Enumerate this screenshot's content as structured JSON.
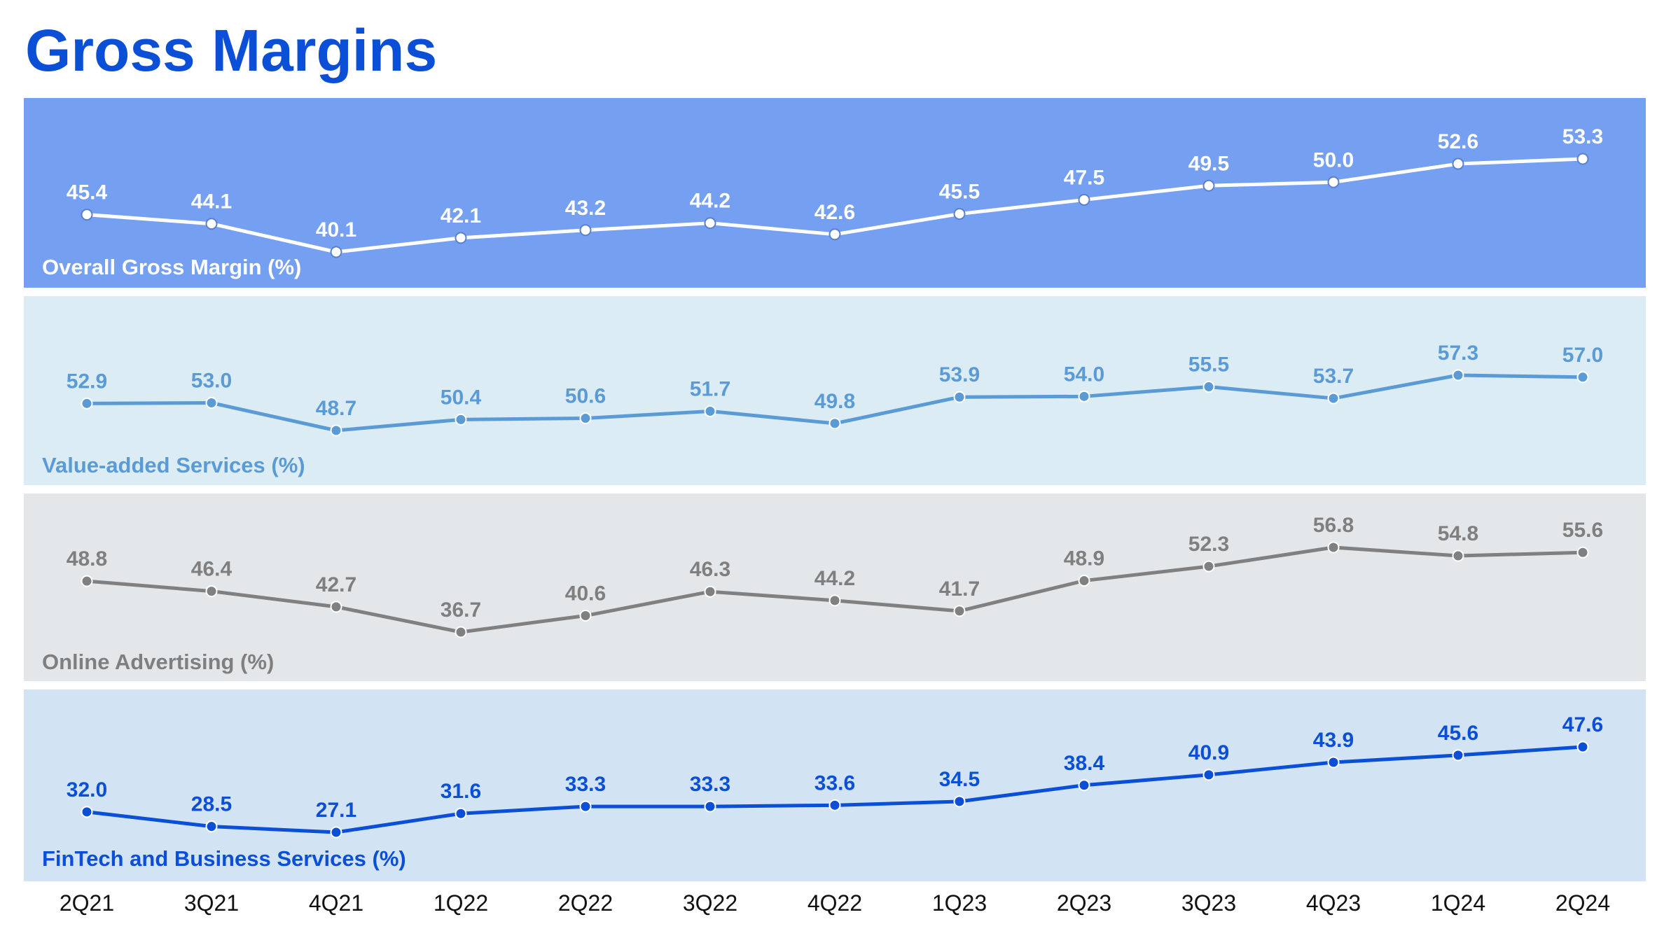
{
  "title": "Gross Margins",
  "colors": {
    "title": "#0a4fd6",
    "x_tick": "#111111"
  },
  "chart_data": {
    "type": "line",
    "title": "Gross Margins",
    "categories": [
      "2Q21",
      "3Q21",
      "4Q21",
      "1Q22",
      "2Q22",
      "3Q22",
      "4Q22",
      "1Q23",
      "2Q23",
      "3Q23",
      "4Q23",
      "1Q24",
      "2Q24"
    ],
    "grid": false,
    "panels": [
      {
        "label": "Overall Gross Margin (%)",
        "series": [
          {
            "name": "Overall Gross Margin (%)",
            "values": [
              45.4,
              44.1,
              40.1,
              42.1,
              43.2,
              44.2,
              42.6,
              45.5,
              47.5,
              49.5,
              50.0,
              52.6,
              53.3
            ]
          }
        ],
        "value_labels": [
          "45.4",
          "44.1",
          "40.1",
          "42.1",
          "43.2",
          "44.2",
          "42.6",
          "45.5",
          "47.5",
          "49.5",
          "50.0",
          "52.6",
          "53.3"
        ],
        "ylim": [
          40.1,
          53.3
        ],
        "background": "#759ff0",
        "line_color": "#ffffff",
        "marker_fill": "#ffffff",
        "marker_stroke": "#5b7fd1",
        "text_color": "#ffffff"
      },
      {
        "label": "Value-added Services (%)",
        "series": [
          {
            "name": "Value-added Services (%)",
            "values": [
              52.9,
              53.0,
              48.7,
              50.4,
              50.6,
              51.7,
              49.8,
              53.9,
              54.0,
              55.5,
              53.7,
              57.3,
              57.0
            ]
          }
        ],
        "value_labels": [
          "52.9",
          "53.0",
          "48.7",
          "50.4",
          "50.6",
          "51.7",
          "49.8",
          "53.9",
          "54.0",
          "55.5",
          "53.7",
          "57.3",
          "57.0"
        ],
        "ylim": [
          48.7,
          57.3
        ],
        "background": "#dcecf5",
        "line_color": "#5b9bd5",
        "marker_fill": "#5b9bd5",
        "marker_stroke": "#ffffff",
        "text_color": "#5b9bd5"
      },
      {
        "label": "Online Advertising (%)",
        "series": [
          {
            "name": "Online Advertising (%)",
            "values": [
              48.8,
              46.4,
              42.7,
              36.7,
              40.6,
              46.3,
              44.2,
              41.7,
              48.9,
              52.3,
              56.8,
              54.8,
              55.6
            ]
          }
        ],
        "value_labels": [
          "48.8",
          "46.4",
          "42.7",
          "36.7",
          "40.6",
          "46.3",
          "44.2",
          "41.7",
          "48.9",
          "52.3",
          "56.8",
          "54.8",
          "55.6"
        ],
        "ylim": [
          36.7,
          56.8
        ],
        "background": "#e3e7ea",
        "line_color": "#808080",
        "marker_fill": "#808080",
        "marker_stroke": "#ffffff",
        "text_color": "#7f7f7f"
      },
      {
        "label": "FinTech and Business Services (%)",
        "series": [
          {
            "name": "FinTech and Business Services (%)",
            "values": [
              32.0,
              28.5,
              27.1,
              31.6,
              33.3,
              33.3,
              33.6,
              34.5,
              38.4,
              40.9,
              43.9,
              45.6,
              47.6
            ]
          }
        ],
        "value_labels": [
          "32.0",
          "28.5",
          "27.1",
          "31.6",
          "33.3",
          "33.3",
          "33.6",
          "34.5",
          "38.4",
          "40.9",
          "43.9",
          "45.6",
          "47.6"
        ],
        "ylim": [
          27.1,
          47.6
        ],
        "background": "#d2e3f3",
        "line_color": "#0a4fd6",
        "marker_fill": "#0a4fd6",
        "marker_stroke": "#ffffff",
        "text_color": "#0a4fd6"
      }
    ]
  }
}
